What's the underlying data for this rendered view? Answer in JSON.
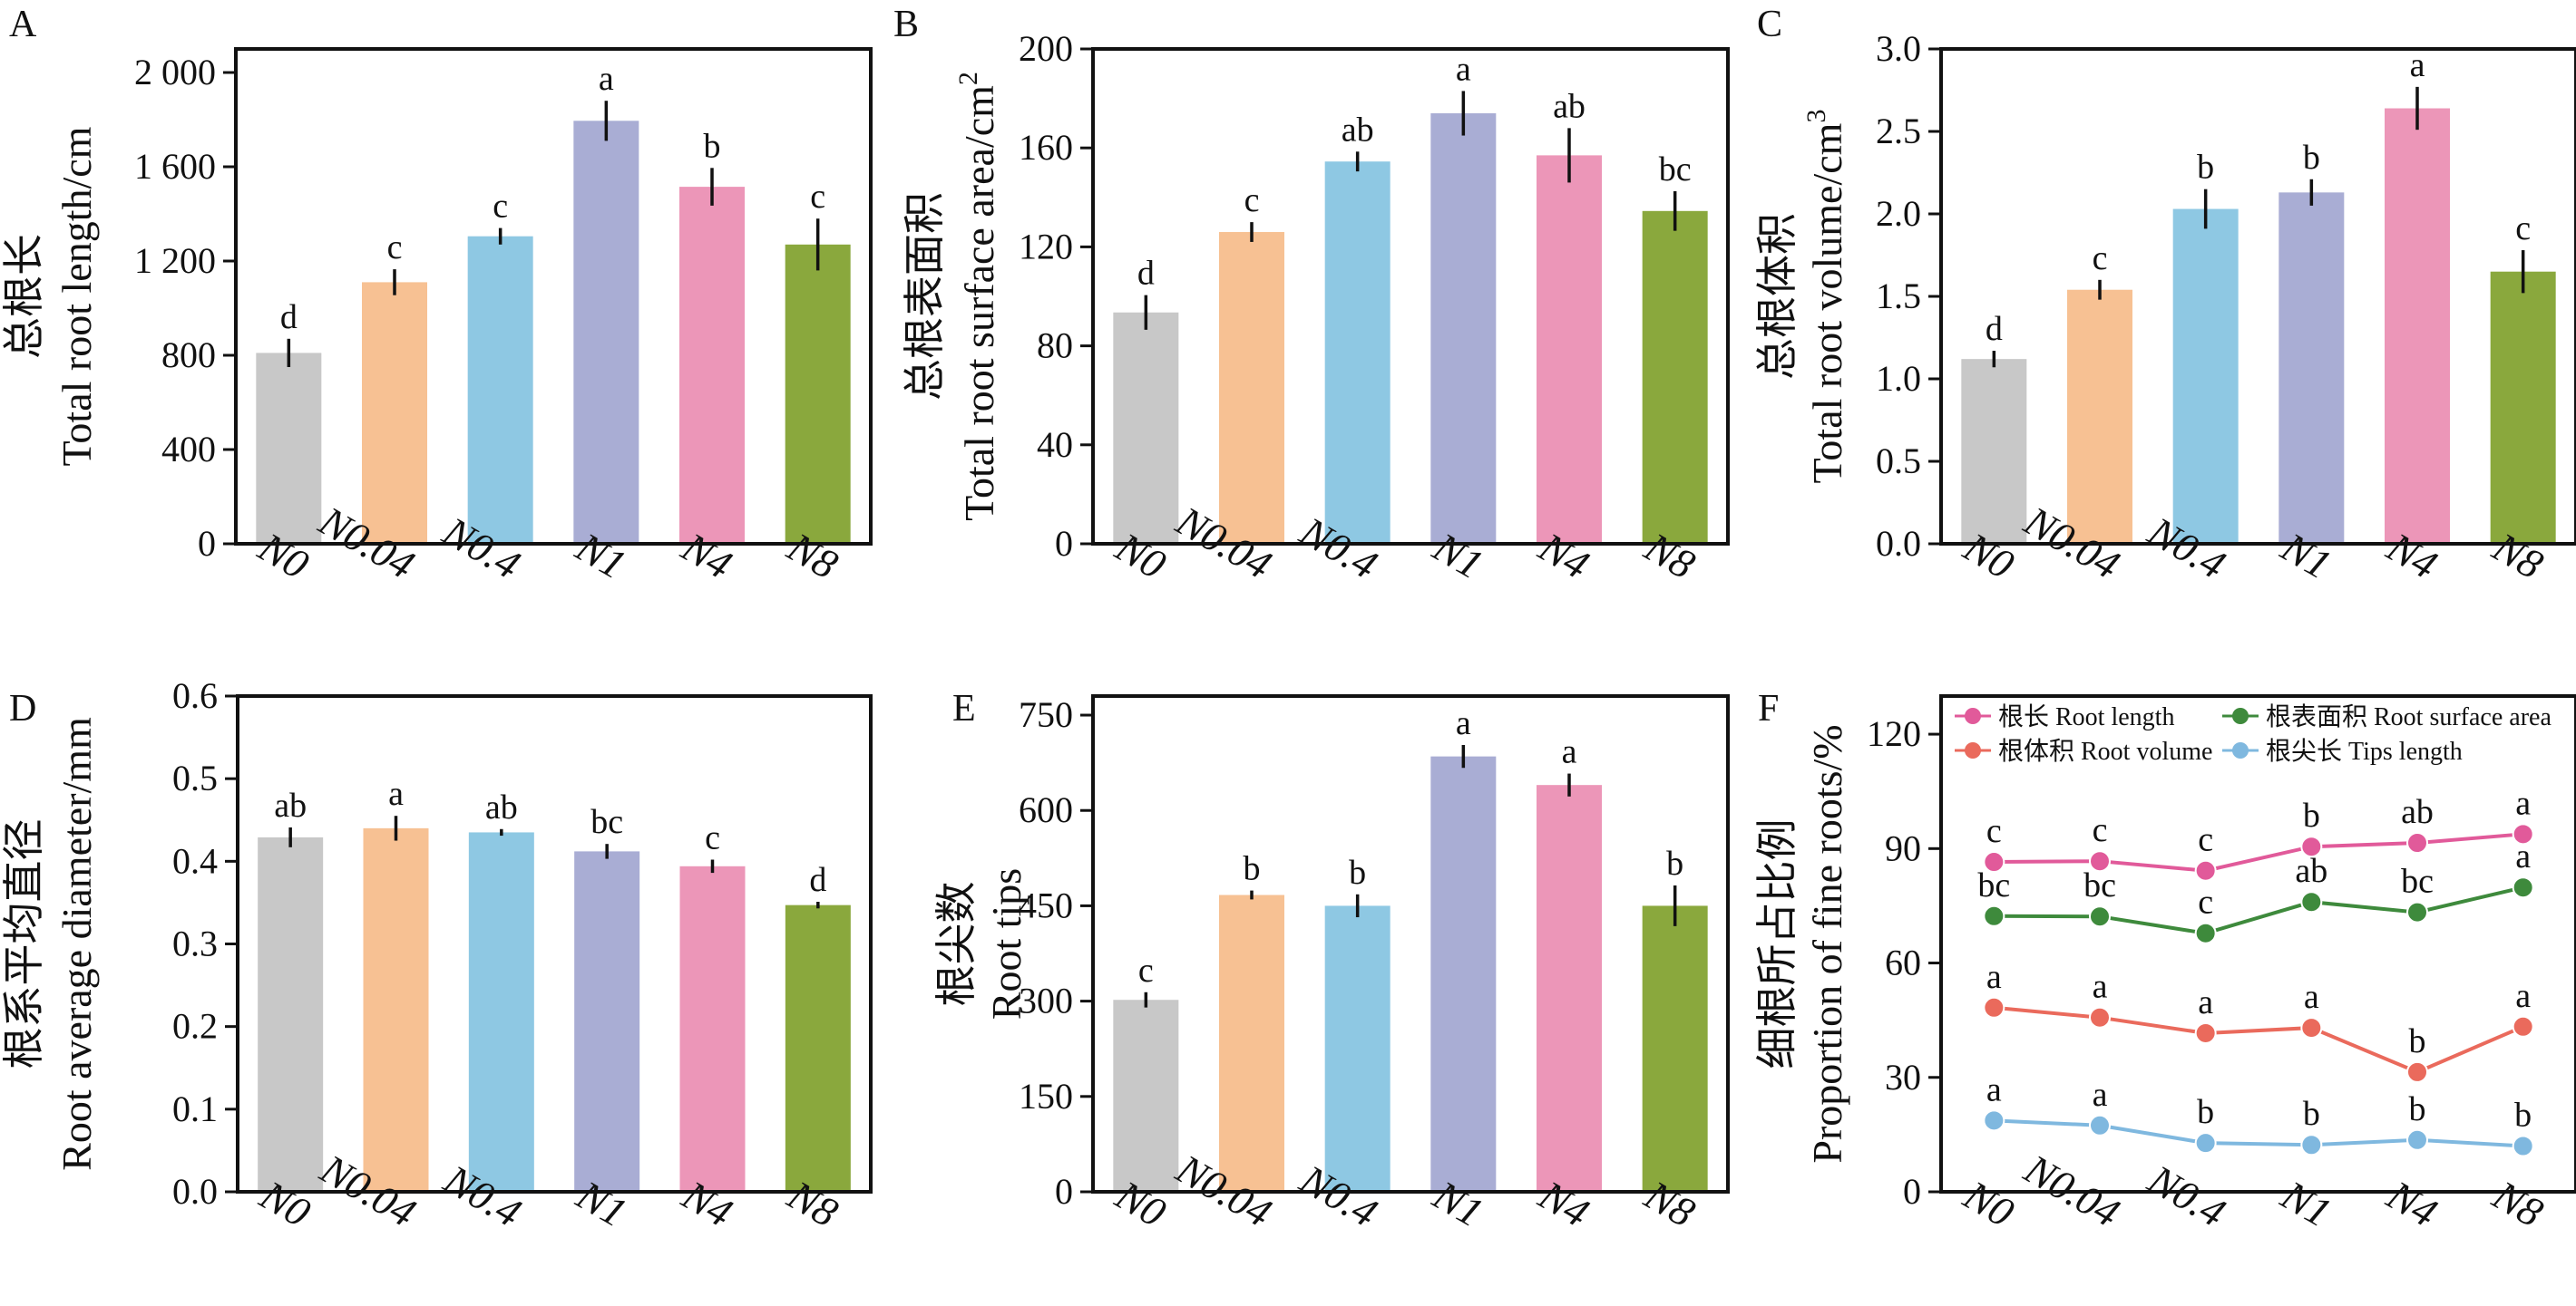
{
  "figure": {
    "palette": {
      "N0": "#c8c8c8",
      "N0.04": "#f7c193",
      "N0.4": "#8ec8e3",
      "N1": "#a9add4",
      "N4": "#ec96b8",
      "N8": "#8aa83d"
    }
  },
  "chart_data": [
    {
      "id": "A",
      "panel_label": "A",
      "type": "bar",
      "ylabel_cn": "总根长",
      "ylabel_en": "Total root length/cm",
      "ylabel_sup": "",
      "categories": [
        "N0",
        "N0.04",
        "N0.4",
        "N1",
        "N4",
        "N8"
      ],
      "values": [
        810,
        1110,
        1305,
        1795,
        1515,
        1270
      ],
      "errors": [
        60,
        55,
        35,
        85,
        80,
        110
      ],
      "letters": [
        "d",
        "c",
        "c",
        "a",
        "b",
        "c"
      ],
      "ylim": [
        0,
        2100
      ],
      "yticks": [
        0,
        400,
        800,
        1200,
        1600,
        2000
      ],
      "ytick_labels": [
        "0",
        "400",
        "800",
        "1 200",
        "1 600",
        "2 000"
      ]
    },
    {
      "id": "B",
      "panel_label": "B",
      "type": "bar",
      "ylabel_cn": "总根表面积",
      "ylabel_en": "Total root surface area/cm",
      "ylabel_sup": "2",
      "categories": [
        "N0",
        "N0.04",
        "N0.4",
        "N1",
        "N4",
        "N8"
      ],
      "values": [
        93.5,
        126,
        154.5,
        174,
        157,
        134.5
      ],
      "errors": [
        7,
        4,
        4,
        9,
        11,
        8
      ],
      "letters": [
        "d",
        "c",
        "ab",
        "a",
        "ab",
        "bc"
      ],
      "ylim": [
        0,
        200
      ],
      "yticks": [
        0,
        40,
        80,
        120,
        160,
        200
      ],
      "ytick_labels": [
        "0",
        "40",
        "80",
        "120",
        "160",
        "200"
      ]
    },
    {
      "id": "C",
      "panel_label": "C",
      "type": "bar",
      "ylabel_cn": "总根体积",
      "ylabel_en": "Total root volume/cm",
      "ylabel_sup": "3",
      "categories": [
        "N0",
        "N0.04",
        "N0.4",
        "N1",
        "N4",
        "N8"
      ],
      "values": [
        1.12,
        1.54,
        2.03,
        2.13,
        2.64,
        1.65
      ],
      "errors": [
        0.05,
        0.06,
        0.12,
        0.08,
        0.13,
        0.13
      ],
      "letters": [
        "d",
        "c",
        "b",
        "b",
        "a",
        "c"
      ],
      "ylim": [
        0,
        3.0
      ],
      "yticks": [
        0,
        0.5,
        1.0,
        1.5,
        2.0,
        2.5,
        3.0
      ],
      "ytick_labels": [
        "0.0",
        "0.5",
        "1.0",
        "1.5",
        "2.0",
        "2.5",
        "3.0"
      ]
    },
    {
      "id": "D",
      "panel_label": "D",
      "type": "bar",
      "ylabel_cn": "根系平均直径",
      "ylabel_en": "Root average diameter/mm",
      "ylabel_sup": "",
      "categories": [
        "N0",
        "N0.04",
        "N0.4",
        "N1",
        "N4",
        "N8"
      ],
      "values": [
        0.429,
        0.44,
        0.435,
        0.412,
        0.394,
        0.347
      ],
      "errors": [
        0.012,
        0.015,
        0.004,
        0.009,
        0.008,
        0.004
      ],
      "letters": [
        "ab",
        "a",
        "ab",
        "bc",
        "c",
        "d"
      ],
      "ylim": [
        0,
        0.6
      ],
      "yticks": [
        0,
        0.1,
        0.2,
        0.3,
        0.4,
        0.5,
        0.6
      ],
      "ytick_labels": [
        "0.0",
        "0.1",
        "0.2",
        "0.3",
        "0.4",
        "0.5",
        "0.6"
      ]
    },
    {
      "id": "E",
      "panel_label": "E",
      "type": "bar",
      "ylabel_cn": "根尖数",
      "ylabel_en": "Root tips",
      "ylabel_sup": "",
      "categories": [
        "N0",
        "N0.04",
        "N0.4",
        "N1",
        "N4",
        "N8"
      ],
      "values": [
        302,
        467,
        450,
        685,
        640,
        450
      ],
      "errors": [
        12,
        7,
        18,
        18,
        18,
        32
      ],
      "letters": [
        "c",
        "b",
        "b",
        "a",
        "a",
        "b"
      ],
      "ylim": [
        0,
        780
      ],
      "yticks": [
        0,
        150,
        300,
        450,
        600,
        750
      ],
      "ytick_labels": [
        "0",
        "150",
        "300",
        "450",
        "600",
        "750"
      ]
    },
    {
      "id": "F",
      "panel_label": "F",
      "type": "line",
      "ylabel_cn": "细根所占比例",
      "ylabel_en": "Proportion of fine roots/%",
      "ylabel_sup": "",
      "categories": [
        "N0",
        "N0.04",
        "N0.4",
        "N1",
        "N4",
        "N8"
      ],
      "ylim": [
        0,
        130
      ],
      "yticks": [
        0,
        30,
        60,
        90,
        120
      ],
      "ytick_labels": [
        "0",
        "30",
        "60",
        "90",
        "120"
      ],
      "series": [
        {
          "name": "根长 Root length",
          "color": "#e15a9a",
          "values": [
            86.5,
            86.7,
            84.2,
            90.5,
            91.5,
            93.8
          ],
          "letters": [
            "c",
            "c",
            "c",
            "b",
            "ab",
            "a"
          ]
        },
        {
          "name": "根表面积 Root surface area",
          "color": "#3e8a3c",
          "values": [
            72.3,
            72.2,
            67.8,
            76.0,
            73.3,
            79.8
          ],
          "letters": [
            "bc",
            "bc",
            "c",
            "ab",
            "bc",
            "a"
          ]
        },
        {
          "name": "根体积 Root volume",
          "color": "#ea6a5c",
          "values": [
            48.3,
            45.7,
            41.6,
            43.0,
            31.4,
            43.3
          ],
          "letters": [
            "a",
            "a",
            "a",
            "a",
            "b",
            "a"
          ]
        },
        {
          "name": "根尖长 Tips length",
          "color": "#7fb8df",
          "values": [
            18.7,
            17.4,
            12.8,
            12.3,
            13.6,
            12.0
          ],
          "letters": [
            "a",
            "a",
            "b",
            "b",
            "b",
            "b"
          ]
        }
      ]
    }
  ]
}
